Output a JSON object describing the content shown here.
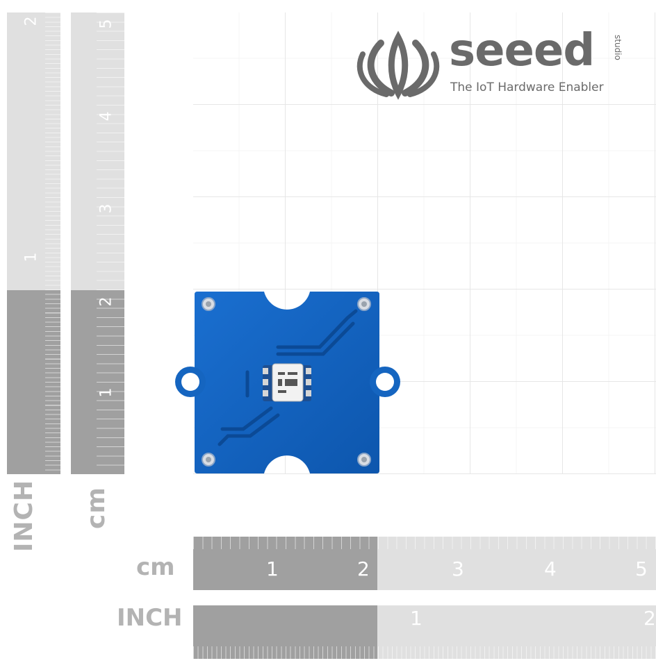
{
  "logo": {
    "brand": "seeed",
    "sub": "studio",
    "tagline": "The IoT Hardware Enabler"
  },
  "rulers": {
    "vertical_inch": {
      "label": "INCH",
      "ticks": [
        "1",
        "2"
      ]
    },
    "vertical_cm": {
      "label": "cm",
      "ticks": [
        "1",
        "2",
        "3",
        "4",
        "5"
      ]
    },
    "horizontal_cm": {
      "label": "cm",
      "ticks": [
        "1",
        "2",
        "3",
        "4",
        "5"
      ]
    },
    "horizontal_inch": {
      "label": "INCH",
      "ticks": [
        "1",
        "2"
      ]
    }
  },
  "colors": {
    "board": "#1565c0",
    "ruler_dark": "#a0a0a0",
    "ruler_light": "#e0e0e0",
    "logo": "#6a6a6a"
  }
}
